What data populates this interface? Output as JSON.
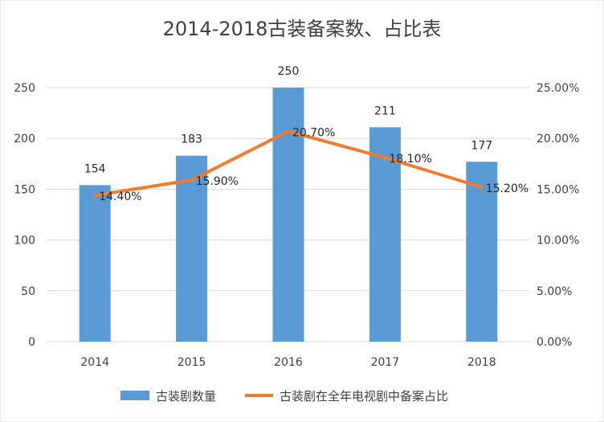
{
  "chart_data": {
    "type": "bar+line",
    "title": "2014-2018古装备案数、占比表",
    "categories": [
      "2014",
      "2015",
      "2016",
      "2017",
      "2018"
    ],
    "series": [
      {
        "name": "古装剧数量",
        "type": "bar",
        "axis": "left",
        "values": [
          154,
          183,
          250,
          211,
          177
        ],
        "labels": [
          "154",
          "183",
          "250",
          "211",
          "177"
        ]
      },
      {
        "name": "古装剧在全年电视剧中备案占比",
        "type": "line",
        "axis": "right",
        "values": [
          14.4,
          15.9,
          20.7,
          18.1,
          15.2
        ],
        "labels": [
          "14.40%",
          "15.90%",
          "20.70%",
          "18.10%",
          "15.20%"
        ]
      }
    ],
    "left_axis": {
      "ylim": [
        0,
        250
      ],
      "ticks": [
        0,
        50,
        100,
        150,
        200,
        250
      ],
      "tick_labels": [
        "0",
        "50",
        "100",
        "150",
        "200",
        "250"
      ]
    },
    "right_axis": {
      "ylim": [
        0,
        25
      ],
      "ticks": [
        0,
        5,
        10,
        15,
        20,
        25
      ],
      "tick_labels": [
        "0.00%",
        "5.00%",
        "10.00%",
        "15.00%",
        "20.00%",
        "25.00%"
      ]
    },
    "grid": true,
    "legend_position": "bottom",
    "colors": {
      "bar": "#5b9bd5",
      "line": "#ed7d31",
      "grid": "#d9d9d9"
    }
  }
}
